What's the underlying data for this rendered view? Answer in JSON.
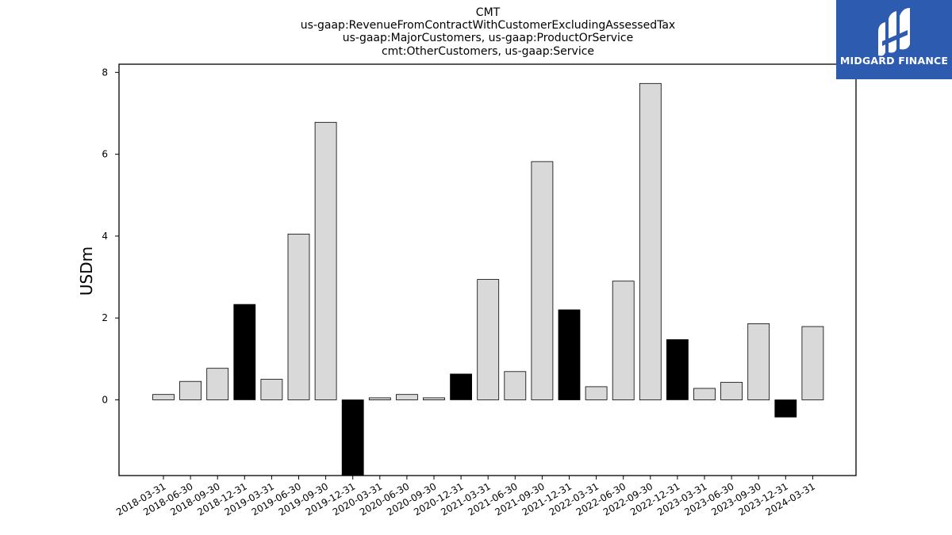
{
  "title_lines": [
    "CMT",
    "us-gaap:RevenueFromContractWithCustomerExcludingAssessedTax",
    "us-gaap:MajorCustomers, us-gaap:ProductOrService",
    "cmt:OtherCustomers, us-gaap:Service"
  ],
  "logo": {
    "text": "MIDGARD FINANCE",
    "icon": "midgard-logo-icon",
    "background": "#2c5bb0"
  },
  "colors": {
    "positive_bar": "#d9d9d9",
    "highlight_bar": "#000000",
    "bar_edge": "#000000"
  },
  "chart_data": {
    "type": "bar",
    "ylabel": "USDm",
    "xlabel": "",
    "ylim": [
      -1.85,
      8.2
    ],
    "yticks": [
      0,
      2,
      4,
      6,
      8
    ],
    "grid": false,
    "categories": [
      "2018-03-31",
      "2018-06-30",
      "2018-09-30",
      "2018-12-31",
      "2019-03-31",
      "2019-06-30",
      "2019-09-30",
      "2019-12-31",
      "2020-03-31",
      "2020-06-30",
      "2020-09-30",
      "2020-12-31",
      "2021-03-31",
      "2021-06-30",
      "2021-09-30",
      "2021-12-31",
      "2022-03-31",
      "2022-06-30",
      "2022-09-30",
      "2022-12-31",
      "2023-03-31",
      "2023-06-30",
      "2023-09-30",
      "2023-12-31",
      "2024-03-31"
    ],
    "values": [
      0.13,
      0.45,
      0.77,
      2.33,
      0.5,
      4.05,
      6.78,
      -1.85,
      0.05,
      0.13,
      0.05,
      0.63,
      2.94,
      0.69,
      5.82,
      2.2,
      0.32,
      2.9,
      7.73,
      1.47,
      0.28,
      0.43,
      1.86,
      -0.42,
      1.79
    ],
    "highlight": [
      false,
      false,
      false,
      true,
      false,
      false,
      false,
      true,
      false,
      false,
      false,
      true,
      false,
      false,
      false,
      true,
      false,
      false,
      false,
      true,
      false,
      false,
      false,
      true,
      false
    ]
  }
}
